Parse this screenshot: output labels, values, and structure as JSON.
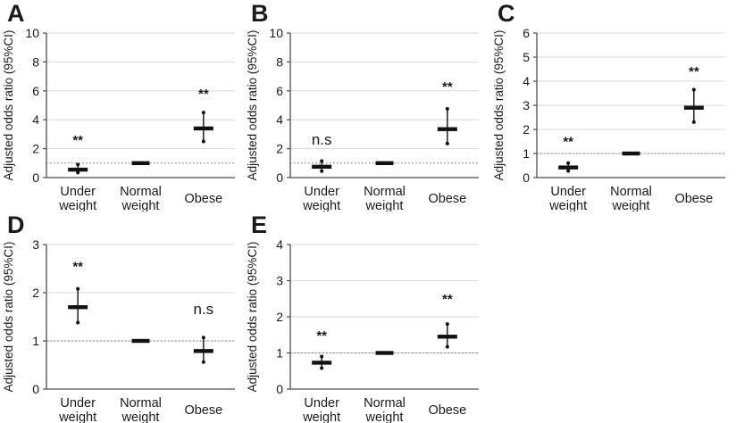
{
  "figure_title": "",
  "colors": {
    "background": "#ffffff",
    "grid": "#d9d9d9",
    "axis": "#4d4d4d",
    "text": "#1a1a1a",
    "marker": "#111111",
    "ref_line": "#707070"
  },
  "chart_data": [
    {
      "type": "scatter",
      "subtype": "forest-point-range",
      "panel": "A",
      "ylabel": "Adjusted odds ratio (95%CI)",
      "ylim": [
        0,
        10
      ],
      "ytick_step": 2,
      "yticks": [
        0,
        2,
        4,
        6,
        8,
        10
      ],
      "grid": true,
      "ref_line_y": 1,
      "categories": [
        "Under weight",
        "Normal weight",
        "Obese"
      ],
      "points": [
        {
          "category": "Under weight",
          "or": 0.55,
          "ci_low": 0.35,
          "ci_high": 0.9,
          "sig": "**",
          "sig_label_y": 2.6
        },
        {
          "category": "Normal weight",
          "or": 1.0,
          "reference": true,
          "sig": ""
        },
        {
          "category": "Obese",
          "or": 3.4,
          "ci_low": 2.5,
          "ci_high": 4.5,
          "sig": "**",
          "sig_label_y": 5.8
        }
      ]
    },
    {
      "type": "scatter",
      "subtype": "forest-point-range",
      "panel": "B",
      "ylabel": "Adjusted odds ratio (95%CI)",
      "ylim": [
        0,
        10
      ],
      "ytick_step": 2,
      "yticks": [
        0,
        2,
        4,
        6,
        8,
        10
      ],
      "grid": true,
      "ref_line_y": 1,
      "categories": [
        "Under weight",
        "Normal weight",
        "Obese"
      ],
      "points": [
        {
          "category": "Under weight",
          "or": 0.75,
          "ci_low": 0.45,
          "ci_high": 1.15,
          "sig": "n.s",
          "sig_label_y": 2.6
        },
        {
          "category": "Normal weight",
          "or": 1.0,
          "reference": true,
          "sig": ""
        },
        {
          "category": "Obese",
          "or": 3.35,
          "ci_low": 2.35,
          "ci_high": 4.75,
          "sig": "**",
          "sig_label_y": 6.3
        }
      ]
    },
    {
      "type": "scatter",
      "subtype": "forest-point-range",
      "panel": "C",
      "ylabel": "Adjusted odds ratio (95%CI)",
      "ylim": [
        0,
        6
      ],
      "ytick_step": 1,
      "yticks": [
        0,
        1,
        2,
        3,
        4,
        5,
        6
      ],
      "grid": true,
      "ref_line_y": 1,
      "categories": [
        "Under weight",
        "Normal weight",
        "Obese"
      ],
      "points": [
        {
          "category": "Under weight",
          "or": 0.42,
          "ci_low": 0.28,
          "ci_high": 0.6,
          "sig": "**",
          "sig_label_y": 1.5
        },
        {
          "category": "Normal weight",
          "or": 1.0,
          "reference": true,
          "sig": ""
        },
        {
          "category": "Obese",
          "or": 2.9,
          "ci_low": 2.3,
          "ci_high": 3.65,
          "sig": "**",
          "sig_label_y": 4.4
        }
      ]
    },
    {
      "type": "scatter",
      "subtype": "forest-point-range",
      "panel": "D",
      "ylabel": "Adjusted odds ratio (95%CI)",
      "ylim": [
        0,
        3
      ],
      "ytick_step": 1,
      "yticks": [
        0,
        1,
        2,
        3
      ],
      "grid": true,
      "ref_line_y": 1,
      "categories": [
        "Under weight",
        "Normal weight",
        "Obese"
      ],
      "points": [
        {
          "category": "Under weight",
          "or": 1.7,
          "ci_low": 1.38,
          "ci_high": 2.08,
          "sig": "**",
          "sig_label_y": 2.55
        },
        {
          "category": "Normal weight",
          "or": 1.0,
          "reference": true,
          "sig": ""
        },
        {
          "category": "Obese",
          "or": 0.79,
          "ci_low": 0.56,
          "ci_high": 1.07,
          "sig": "n.s",
          "sig_label_y": 1.65
        }
      ]
    },
    {
      "type": "scatter",
      "subtype": "forest-point-range",
      "panel": "E",
      "ylabel": "Adjusted odds ratio (95%CI)",
      "ylim": [
        0,
        4
      ],
      "ytick_step": 1,
      "yticks": [
        0,
        1,
        2,
        3,
        4
      ],
      "grid": true,
      "ref_line_y": 1,
      "categories": [
        "Under weight",
        "Normal weight",
        "Obese"
      ],
      "points": [
        {
          "category": "Under weight",
          "or": 0.73,
          "ci_low": 0.58,
          "ci_high": 0.9,
          "sig": "**",
          "sig_label_y": 1.48
        },
        {
          "category": "Normal weight",
          "or": 1.0,
          "reference": true,
          "sig": ""
        },
        {
          "category": "Obese",
          "or": 1.45,
          "ci_low": 1.17,
          "ci_high": 1.8,
          "sig": "**",
          "sig_label_y": 2.5
        }
      ]
    }
  ]
}
